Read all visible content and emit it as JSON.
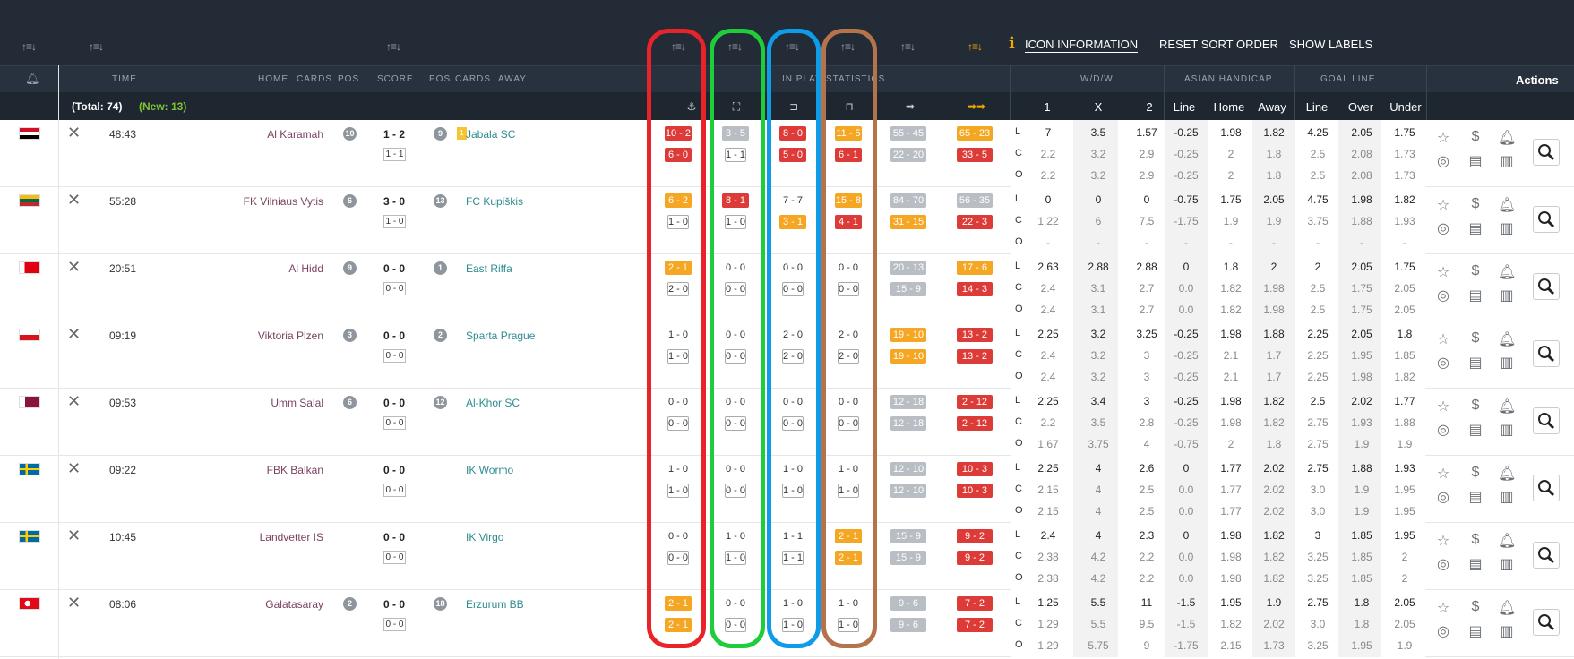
{
  "toolbar": {
    "icon_information": "ICON INFORMATION",
    "reset_sort_order": "RESET SORT ORDER",
    "show_labels": "SHOW LABELS"
  },
  "columns": {
    "time": "TIME",
    "home": "HOME",
    "cards1": "CARDS",
    "pos1": "POS",
    "score": "SCORE",
    "pos2": "POS",
    "cards2": "CARDS",
    "away": "AWAY",
    "in_play": "IN PLAY",
    "statistics": "STATISTICS",
    "wdw": "W/D/W",
    "asian": "ASIAN HANDICAP",
    "goal": "GOAL LINE",
    "actions": "Actions"
  },
  "odds_headers": [
    "1",
    "X",
    "2",
    "Line",
    "Home",
    "Away",
    "Line",
    "Over",
    "Under"
  ],
  "totals": {
    "total": "(Total: 74)",
    "new": "(New: 13)"
  },
  "row_labels": [
    "L",
    "C",
    "O"
  ],
  "colors": {
    "red": "#dd3b38",
    "orange": "#f5a623",
    "gray": "#b9bec4",
    "header": "#222b36"
  },
  "matches": [
    {
      "time": "48:43",
      "home": "Al Karamah",
      "home_pos": "10",
      "score": "1 - 2",
      "ht": "1 - 1",
      "away_pos": "9",
      "away_card": "1",
      "away": "Jabala SC",
      "stats": [
        [
          "10 - 2",
          "red",
          "6 - 0",
          "red"
        ],
        [
          "3 - 5",
          "gray",
          "1 - 1",
          "out"
        ],
        [
          "8 - 0",
          "red",
          "5 - 0",
          "red"
        ],
        [
          "11 - 5",
          "orange",
          "6 - 1",
          "red"
        ],
        [
          "55 - 45",
          "gray",
          "22 - 20",
          "gray"
        ],
        [
          "65 - 23",
          "orange",
          "33 - 5",
          "red"
        ]
      ],
      "odds": [
        [
          "7",
          "3.5",
          "1.57",
          "-0.25",
          "1.98",
          "1.82",
          "4.25",
          "2.05",
          "1.75"
        ],
        [
          "2.2",
          "3.2",
          "2.9",
          "-0.25",
          "2",
          "1.8",
          "2.5",
          "2.08",
          "1.73"
        ],
        [
          "2.2",
          "3.2",
          "2.9",
          "-0.25",
          "2",
          "1.8",
          "2.5",
          "2.08",
          "1.73"
        ]
      ]
    },
    {
      "time": "55:28",
      "home": "FK Vilniaus Vytis",
      "home_pos": "6",
      "score": "3 - 0",
      "ht": "1 - 0",
      "away_pos": "13",
      "away": "FC Kupiškis",
      "stats": [
        [
          "6 - 2",
          "orange",
          "1 - 0",
          "out"
        ],
        [
          "8 - 1",
          "red",
          "1 - 0",
          "out"
        ],
        [
          "7 - 7",
          "plain",
          "3 - 1",
          "orange"
        ],
        [
          "15 - 8",
          "orange",
          "4 - 1",
          "red"
        ],
        [
          "84 - 70",
          "gray",
          "31 - 15",
          "orange"
        ],
        [
          "56 - 35",
          "gray",
          "22 - 3",
          "red"
        ]
      ],
      "odds": [
        [
          "0",
          "0",
          "0",
          "-0.75",
          "1.75",
          "2.05",
          "4.75",
          "1.98",
          "1.82"
        ],
        [
          "1.22",
          "6",
          "7.5",
          "-1.75",
          "1.9",
          "1.9",
          "3.75",
          "1.88",
          "1.93"
        ],
        [
          "-",
          "-",
          "-",
          "-",
          "-",
          "-",
          "-",
          "-",
          "-"
        ]
      ]
    },
    {
      "time": "20:51",
      "home": "Al Hidd",
      "home_pos": "9",
      "score": "0 - 0",
      "ht": "0 - 0",
      "away_pos": "1",
      "away": "East Riffa",
      "stats": [
        [
          "2 - 1",
          "orange",
          "2 - 0",
          "out"
        ],
        [
          "0 - 0",
          "plain",
          "0 - 0",
          "out"
        ],
        [
          "0 - 0",
          "plain",
          "0 - 0",
          "out"
        ],
        [
          "0 - 0",
          "plain",
          "0 - 0",
          "out"
        ],
        [
          "20 - 13",
          "gray",
          "15 - 9",
          "gray"
        ],
        [
          "17 - 6",
          "orange",
          "14 - 3",
          "red"
        ]
      ],
      "odds": [
        [
          "2.63",
          "2.88",
          "2.88",
          "0",
          "1.8",
          "2",
          "2",
          "2.05",
          "1.75"
        ],
        [
          "2.4",
          "3.1",
          "2.7",
          "0.0",
          "1.82",
          "1.98",
          "2.5",
          "1.75",
          "2.05"
        ],
        [
          "2.4",
          "3.1",
          "2.7",
          "0.0",
          "1.82",
          "1.98",
          "2.5",
          "1.75",
          "2.05"
        ]
      ]
    },
    {
      "time": "09:19",
      "home": "Viktoria Plzen",
      "home_pos": "3",
      "score": "0 - 0",
      "ht": "0 - 0",
      "away_pos": "2",
      "away": "Sparta Prague",
      "stats": [
        [
          "1 - 0",
          "plain",
          "1 - 0",
          "out"
        ],
        [
          "0 - 0",
          "plain",
          "0 - 0",
          "out"
        ],
        [
          "2 - 0",
          "plain",
          "2 - 0",
          "out"
        ],
        [
          "2 - 0",
          "plain",
          "2 - 0",
          "out"
        ],
        [
          "19 - 10",
          "orange",
          "19 - 10",
          "orange"
        ],
        [
          "13 - 2",
          "red",
          "13 - 2",
          "red"
        ]
      ],
      "odds": [
        [
          "2.25",
          "3.2",
          "3.25",
          "-0.25",
          "1.98",
          "1.88",
          "2.25",
          "2.05",
          "1.8"
        ],
        [
          "2.4",
          "3.2",
          "3",
          "-0.25",
          "2.1",
          "1.7",
          "2.25",
          "1.95",
          "1.85"
        ],
        [
          "2.4",
          "3.2",
          "3",
          "-0.25",
          "2.1",
          "1.7",
          "2.25",
          "1.98",
          "1.82"
        ]
      ]
    },
    {
      "time": "09:53",
      "home": "Umm Salal",
      "home_pos": "6",
      "score": "0 - 0",
      "ht": "0 - 0",
      "away_pos": "12",
      "away": "Al-Khor SC",
      "stats": [
        [
          "0 - 0",
          "plain",
          "0 - 0",
          "out"
        ],
        [
          "0 - 0",
          "plain",
          "0 - 0",
          "out"
        ],
        [
          "0 - 0",
          "plain",
          "0 - 0",
          "out"
        ],
        [
          "0 - 0",
          "plain",
          "0 - 0",
          "out"
        ],
        [
          "12 - 18",
          "gray",
          "12 - 18",
          "gray"
        ],
        [
          "2 - 12",
          "red",
          "2 - 12",
          "red"
        ]
      ],
      "odds": [
        [
          "2.25",
          "3.4",
          "3",
          "-0.25",
          "1.98",
          "1.82",
          "2.5",
          "2.02",
          "1.77"
        ],
        [
          "2.2",
          "3.5",
          "2.8",
          "-0.25",
          "1.98",
          "1.82",
          "2.75",
          "1.93",
          "1.88"
        ],
        [
          "1.67",
          "3.75",
          "4",
          "-0.75",
          "2",
          "1.8",
          "2.75",
          "1.9",
          "1.9"
        ]
      ]
    },
    {
      "time": "09:22",
      "home": "FBK Balkan",
      "score": "0 - 0",
      "ht": "0 - 0",
      "away": "IK Wormo",
      "stats": [
        [
          "1 - 0",
          "plain",
          "1 - 0",
          "out"
        ],
        [
          "0 - 0",
          "plain",
          "0 - 0",
          "out"
        ],
        [
          "1 - 0",
          "plain",
          "1 - 0",
          "out"
        ],
        [
          "1 - 0",
          "plain",
          "1 - 0",
          "out"
        ],
        [
          "12 - 10",
          "gray",
          "12 - 10",
          "gray"
        ],
        [
          "10 - 3",
          "red",
          "10 - 3",
          "red"
        ]
      ],
      "odds": [
        [
          "2.25",
          "4",
          "2.6",
          "0",
          "1.77",
          "2.02",
          "2.75",
          "1.88",
          "1.93"
        ],
        [
          "2.15",
          "4",
          "2.5",
          "0.0",
          "1.77",
          "2.02",
          "3.0",
          "1.9",
          "1.95"
        ],
        [
          "2.15",
          "4",
          "2.5",
          "0.0",
          "1.77",
          "2.02",
          "3.0",
          "1.9",
          "1.95"
        ]
      ]
    },
    {
      "time": "10:45",
      "home": "Landvetter IS",
      "score": "0 - 0",
      "ht": "0 - 0",
      "away": "IK Virgo",
      "stats": [
        [
          "0 - 0",
          "plain",
          "0 - 0",
          "out"
        ],
        [
          "1 - 0",
          "plain",
          "1 - 0",
          "out"
        ],
        [
          "1 - 1",
          "plain",
          "1 - 1",
          "out"
        ],
        [
          "2 - 1",
          "orange",
          "2 - 1",
          "orange"
        ],
        [
          "15 - 9",
          "gray",
          "15 - 9",
          "gray"
        ],
        [
          "9 - 2",
          "red",
          "9 - 2",
          "red"
        ]
      ],
      "odds": [
        [
          "2.4",
          "4",
          "2.3",
          "0",
          "1.98",
          "1.82",
          "3",
          "1.85",
          "1.95"
        ],
        [
          "2.38",
          "4.2",
          "2.2",
          "0.0",
          "1.98",
          "1.82",
          "3.25",
          "1.85",
          "2"
        ],
        [
          "2.38",
          "4.2",
          "2.2",
          "0.0",
          "1.98",
          "1.82",
          "3.25",
          "1.85",
          "2"
        ]
      ]
    },
    {
      "time": "08:06",
      "home": "Galatasaray",
      "home_pos": "2",
      "score": "0 - 0",
      "ht": "0 - 0",
      "away_pos": "18",
      "away": "Erzurum BB",
      "stats": [
        [
          "2 - 1",
          "orange",
          "2 - 1",
          "orange"
        ],
        [
          "0 - 0",
          "plain",
          "0 - 0",
          "out"
        ],
        [
          "1 - 0",
          "plain",
          "1 - 0",
          "out"
        ],
        [
          "1 - 0",
          "plain",
          "1 - 0",
          "out"
        ],
        [
          "9 - 6",
          "gray",
          "9 - 6",
          "gray"
        ],
        [
          "7 - 2",
          "red",
          "7 - 2",
          "red"
        ]
      ],
      "odds": [
        [
          "1.25",
          "5.5",
          "11",
          "-1.5",
          "1.95",
          "1.9",
          "2.75",
          "1.8",
          "2.05"
        ],
        [
          "1.29",
          "5.5",
          "9.5",
          "-1.5",
          "1.82",
          "2.02",
          "3.0",
          "1.8",
          "2.05"
        ],
        [
          "1.29",
          "5.75",
          "9",
          "-1.75",
          "2.15",
          "1.73",
          "3.25",
          "1.95",
          "1.9"
        ]
      ]
    }
  ]
}
